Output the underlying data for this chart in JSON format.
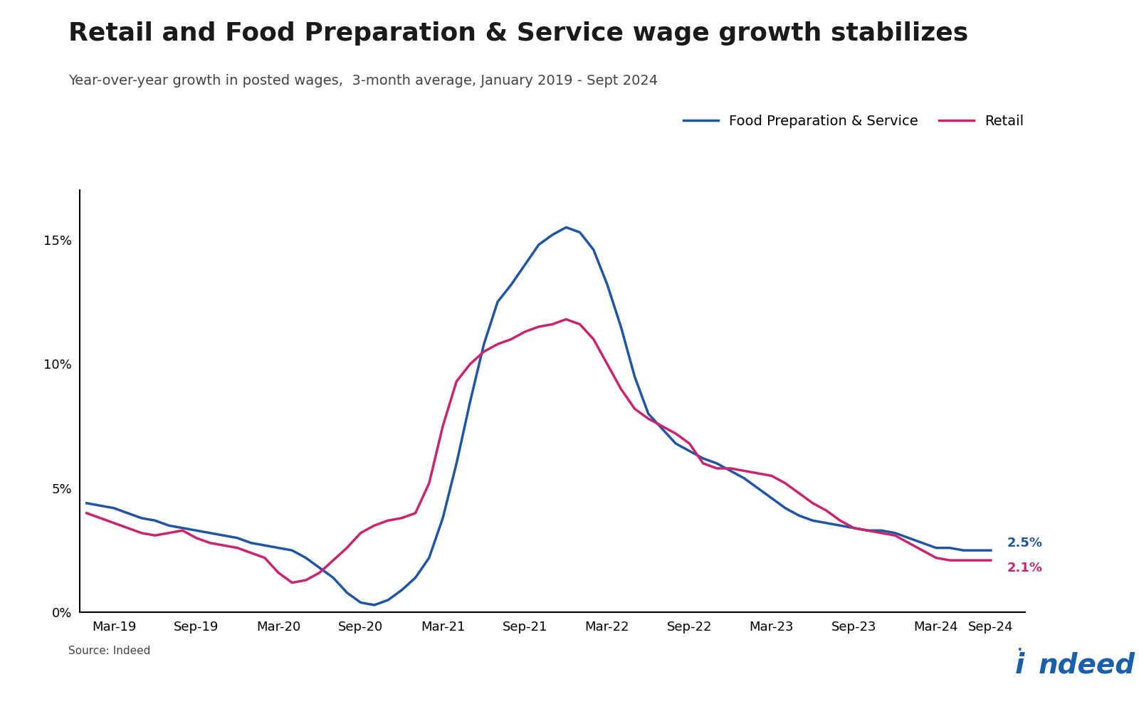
{
  "title": "Retail and Food Preparation & Service wage growth stabilizes",
  "subtitle": "Year-over-year growth in posted wages,  3-month average, January 2019 - Sept 2024",
  "source": "Source: Indeed",
  "food_color": "#2055a4",
  "retail_color": "#c8256e",
  "food_label": "Food Preparation & Service",
  "retail_label": "Retail",
  "food_end_label": "2.5%",
  "retail_end_label": "2.1%",
  "ylim": [
    0,
    0.17
  ],
  "yticks": [
    0,
    0.05,
    0.1,
    0.15
  ],
  "ytick_labels": [
    "0%",
    "5%",
    "10%",
    "15%"
  ],
  "xtick_labels": [
    "Mar-19",
    "Sep-19",
    "Mar-20",
    "Sep-20",
    "Mar-21",
    "Sep-21",
    "Mar-22",
    "Sep-22",
    "Mar-23",
    "Sep-23",
    "Mar-24",
    "Sep-24"
  ],
  "food_x": [
    0,
    1,
    2,
    3,
    4,
    5,
    6,
    7,
    8,
    9,
    10,
    11,
    12,
    13,
    14,
    15,
    16,
    17,
    18,
    19,
    20,
    21,
    22,
    23,
    24,
    25,
    26,
    27,
    28,
    29,
    30,
    31,
    32,
    33,
    34,
    35,
    36,
    37,
    38,
    39,
    40,
    41,
    42,
    43,
    44,
    45,
    46,
    47,
    48,
    49,
    50,
    51,
    52,
    53,
    54,
    55,
    56,
    57,
    58,
    59,
    60,
    61,
    62,
    63,
    64,
    65,
    66
  ],
  "food_y": [
    0.044,
    0.043,
    0.042,
    0.04,
    0.038,
    0.037,
    0.035,
    0.034,
    0.033,
    0.032,
    0.031,
    0.03,
    0.028,
    0.027,
    0.026,
    0.025,
    0.022,
    0.018,
    0.014,
    0.008,
    0.004,
    0.003,
    0.005,
    0.009,
    0.014,
    0.022,
    0.038,
    0.06,
    0.085,
    0.108,
    0.125,
    0.132,
    0.14,
    0.148,
    0.152,
    0.155,
    0.153,
    0.146,
    0.132,
    0.115,
    0.095,
    0.08,
    0.074,
    0.068,
    0.065,
    0.062,
    0.06,
    0.057,
    0.054,
    0.05,
    0.046,
    0.042,
    0.039,
    0.037,
    0.036,
    0.035,
    0.034,
    0.033,
    0.033,
    0.032,
    0.03,
    0.028,
    0.026,
    0.026,
    0.025,
    0.025,
    0.025
  ],
  "retail_x": [
    0,
    1,
    2,
    3,
    4,
    5,
    6,
    7,
    8,
    9,
    10,
    11,
    12,
    13,
    14,
    15,
    16,
    17,
    18,
    19,
    20,
    21,
    22,
    23,
    24,
    25,
    26,
    27,
    28,
    29,
    30,
    31,
    32,
    33,
    34,
    35,
    36,
    37,
    38,
    39,
    40,
    41,
    42,
    43,
    44,
    45,
    46,
    47,
    48,
    49,
    50,
    51,
    52,
    53,
    54,
    55,
    56,
    57,
    58,
    59,
    60,
    61,
    62,
    63,
    64,
    65,
    66
  ],
  "retail_y": [
    0.04,
    0.038,
    0.036,
    0.034,
    0.032,
    0.031,
    0.032,
    0.033,
    0.03,
    0.028,
    0.027,
    0.026,
    0.024,
    0.022,
    0.016,
    0.012,
    0.013,
    0.016,
    0.021,
    0.026,
    0.032,
    0.035,
    0.037,
    0.038,
    0.04,
    0.052,
    0.075,
    0.093,
    0.1,
    0.105,
    0.108,
    0.11,
    0.113,
    0.115,
    0.116,
    0.118,
    0.116,
    0.11,
    0.1,
    0.09,
    0.082,
    0.078,
    0.075,
    0.072,
    0.068,
    0.06,
    0.058,
    0.058,
    0.057,
    0.056,
    0.055,
    0.052,
    0.048,
    0.044,
    0.041,
    0.037,
    0.034,
    0.033,
    0.032,
    0.031,
    0.028,
    0.025,
    0.022,
    0.021,
    0.021,
    0.021,
    0.021
  ],
  "xtick_positions": [
    2,
    8,
    14,
    20,
    26,
    32,
    38,
    44,
    50,
    56,
    62,
    66
  ],
  "background_color": "#ffffff",
  "title_fontsize": 26,
  "subtitle_fontsize": 14,
  "tick_fontsize": 13,
  "legend_fontsize": 14,
  "line_width": 2.5,
  "indeed_blue": "#1a5fac"
}
